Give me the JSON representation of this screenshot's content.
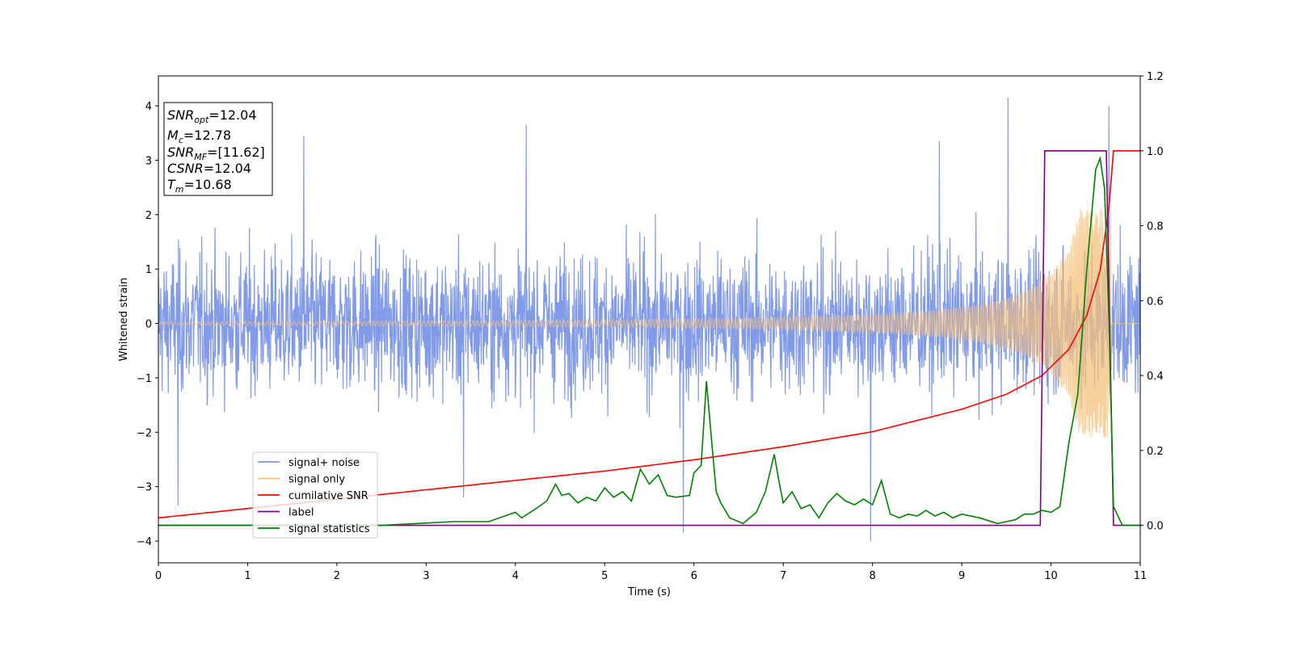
{
  "chart_data": {
    "type": "line",
    "xlabel": "Time (s)",
    "ylabel": "Whitened strain",
    "xlim": [
      0,
      11
    ],
    "ylim": [
      -4.4,
      4.55
    ],
    "y2lim": [
      -0.1,
      1.2
    ],
    "xticks": [
      "0",
      "1",
      "2",
      "3",
      "4",
      "5",
      "6",
      "7",
      "8",
      "9",
      "10",
      "11"
    ],
    "yticks": [
      "−4",
      "−3",
      "−2",
      "−1",
      "0",
      "1",
      "2",
      "3",
      "4"
    ],
    "y2ticks": [
      "0.0",
      "0.2",
      "0.4",
      "0.6",
      "0.8",
      "1.0",
      "1.2"
    ],
    "annotation": {
      "lines": [
        {
          "main": "SNR",
          "sub": "opt",
          "rest": "=12.04"
        },
        {
          "main": "M",
          "sub": "c",
          "rest": "=12.78"
        },
        {
          "main": "SNR",
          "sub": "MF",
          "rest": "=[11.62]"
        },
        {
          "main": "CSNR",
          "sub": "",
          "rest": "=12.04"
        },
        {
          "main": "T",
          "sub": "m",
          "rest": "=10.68"
        }
      ]
    },
    "legend": {
      "position": "lower left",
      "entries": [
        {
          "label": "signal+ noise",
          "color": "#7b96e8"
        },
        {
          "label": "signal only",
          "color": "#f5c07a"
        },
        {
          "label": "cumilative SNR",
          "color": "#ff0000"
        },
        {
          "label": "label",
          "color": "#800080"
        },
        {
          "label": "signal statistics",
          "color": "#008000"
        }
      ]
    },
    "series": [
      {
        "name": "signal+ noise",
        "axis": "left",
        "color": "#7b96e8",
        "sampling_note": "approximate noise band, visual envelope",
        "envelope": {
          "low": -2.6,
          "high": 2.8
        },
        "notable_points": [
          {
            "x": 0.22,
            "y": -3.35
          },
          {
            "x": 1.63,
            "y": 3.45
          },
          {
            "x": 4.12,
            "y": 3.65
          },
          {
            "x": 5.88,
            "y": -3.85
          },
          {
            "x": 7.98,
            "y": -4.0
          },
          {
            "x": 9.52,
            "y": 4.15
          },
          {
            "x": 10.65,
            "y": 4.0
          },
          {
            "x": 3.42,
            "y": -3.2
          },
          {
            "x": 8.75,
            "y": 3.35
          }
        ]
      },
      {
        "name": "signal only",
        "axis": "left",
        "color": "#f5c07a",
        "chirp": {
          "t_merge": 10.68,
          "amp_at_start": 0.03,
          "amp_peak": 2.1
        }
      },
      {
        "name": "cumilative SNR",
        "axis": "right",
        "color": "#ff0000",
        "x": [
          0,
          1,
          2,
          3,
          4,
          5,
          6,
          7,
          8,
          9,
          9.5,
          9.9,
          10.2,
          10.4,
          10.55,
          10.65,
          10.7,
          11
        ],
        "values": [
          0.02,
          0.045,
          0.07,
          0.095,
          0.12,
          0.145,
          0.175,
          0.21,
          0.25,
          0.31,
          0.35,
          0.4,
          0.47,
          0.56,
          0.68,
          0.85,
          1.0,
          1.0
        ]
      },
      {
        "name": "label",
        "axis": "right",
        "color": "#800080",
        "x": [
          0,
          9.88,
          9.93,
          10.62,
          10.7,
          11
        ],
        "values": [
          0.0,
          0.0,
          1.0,
          1.0,
          0.0,
          0.0
        ]
      },
      {
        "name": "signal statistics",
        "axis": "right",
        "color": "#008000",
        "x": [
          0,
          2.5,
          2.9,
          3.3,
          3.7,
          4.0,
          4.07,
          4.2,
          4.35,
          4.45,
          4.52,
          4.6,
          4.7,
          4.8,
          4.9,
          5.0,
          5.1,
          5.2,
          5.3,
          5.4,
          5.5,
          5.6,
          5.7,
          5.8,
          5.95,
          6.0,
          6.08,
          6.14,
          6.2,
          6.25,
          6.3,
          6.4,
          6.55,
          6.7,
          6.8,
          6.9,
          6.95,
          7.0,
          7.1,
          7.2,
          7.3,
          7.4,
          7.5,
          7.6,
          7.7,
          7.8,
          7.9,
          8.0,
          8.1,
          8.2,
          8.3,
          8.4,
          8.5,
          8.6,
          8.7,
          8.8,
          8.9,
          9.0,
          9.2,
          9.4,
          9.5,
          9.6,
          9.7,
          9.8,
          9.9,
          10.0,
          10.1,
          10.2,
          10.3,
          10.4,
          10.5,
          10.55,
          10.6,
          10.65,
          10.7,
          10.8,
          11
        ],
        "values": [
          0.0,
          0.0,
          0.005,
          0.01,
          0.01,
          0.035,
          0.02,
          0.04,
          0.065,
          0.11,
          0.08,
          0.085,
          0.06,
          0.075,
          0.065,
          0.1,
          0.075,
          0.09,
          0.065,
          0.15,
          0.11,
          0.135,
          0.08,
          0.075,
          0.08,
          0.14,
          0.16,
          0.385,
          0.22,
          0.09,
          0.06,
          0.02,
          0.005,
          0.035,
          0.09,
          0.19,
          0.12,
          0.06,
          0.09,
          0.045,
          0.055,
          0.02,
          0.06,
          0.085,
          0.065,
          0.055,
          0.07,
          0.055,
          0.12,
          0.03,
          0.02,
          0.03,
          0.025,
          0.04,
          0.025,
          0.035,
          0.02,
          0.03,
          0.02,
          0.005,
          0.01,
          0.015,
          0.03,
          0.03,
          0.04,
          0.035,
          0.05,
          0.22,
          0.35,
          0.68,
          0.95,
          0.98,
          0.9,
          0.55,
          0.05,
          0.0,
          0.0
        ]
      }
    ]
  }
}
